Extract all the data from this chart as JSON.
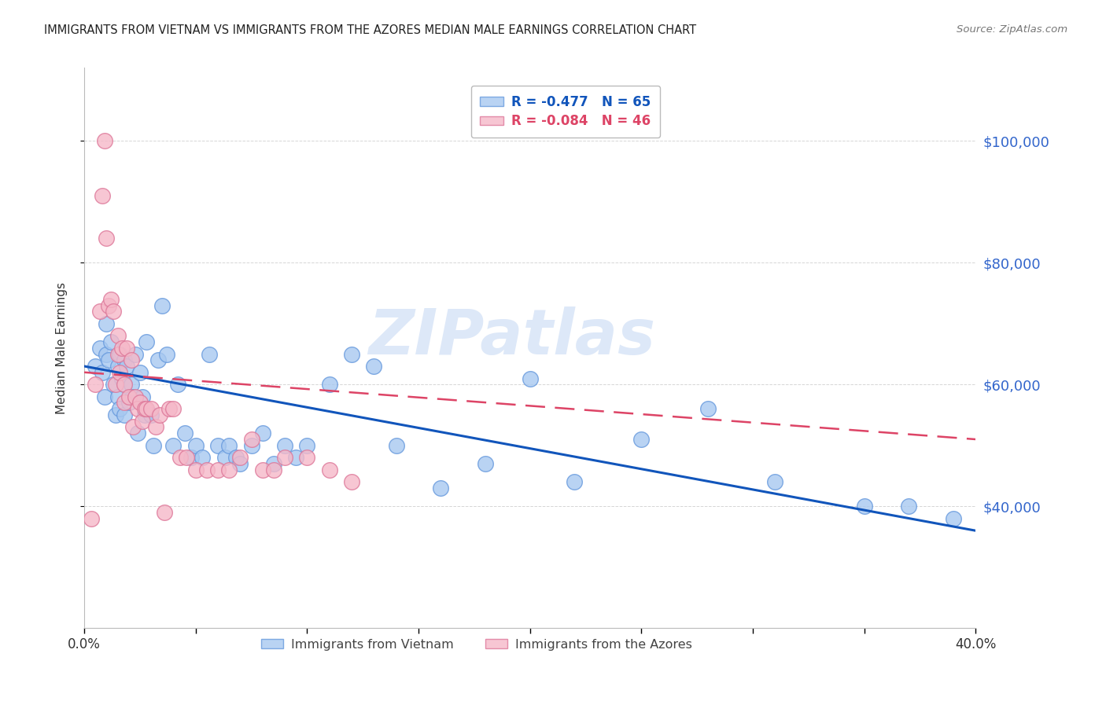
{
  "title": "IMMIGRANTS FROM VIETNAM VS IMMIGRANTS FROM THE AZORES MEDIAN MALE EARNINGS CORRELATION CHART",
  "source": "Source: ZipAtlas.com",
  "ylabel": "Median Male Earnings",
  "ylim": [
    20000,
    112000
  ],
  "xlim": [
    0.0,
    0.4
  ],
  "yticks": [
    40000,
    60000,
    80000,
    100000
  ],
  "ytick_labels": [
    "$40,000",
    "$60,000",
    "$80,000",
    "$100,000"
  ],
  "background_color": "#ffffff",
  "grid_color": "#cccccc",
  "vietnam_color": "#a8c8f0",
  "azores_color": "#f5b8c8",
  "vietnam_edge": "#6699dd",
  "azores_edge": "#dd7799",
  "trendline_vietnam_color": "#1155bb",
  "trendline_azores_color": "#dd4466",
  "title_color": "#222222",
  "right_label_color": "#3366cc",
  "watermark_color": "#dde8f8",
  "vietnam_x": [
    0.005,
    0.007,
    0.008,
    0.009,
    0.01,
    0.01,
    0.011,
    0.012,
    0.013,
    0.014,
    0.015,
    0.015,
    0.016,
    0.016,
    0.017,
    0.018,
    0.018,
    0.018,
    0.019,
    0.02,
    0.021,
    0.022,
    0.023,
    0.024,
    0.025,
    0.026,
    0.027,
    0.028,
    0.03,
    0.031,
    0.033,
    0.035,
    0.037,
    0.04,
    0.042,
    0.045,
    0.048,
    0.05,
    0.053,
    0.056,
    0.06,
    0.063,
    0.065,
    0.068,
    0.07,
    0.075,
    0.08,
    0.085,
    0.09,
    0.095,
    0.1,
    0.11,
    0.12,
    0.13,
    0.14,
    0.16,
    0.18,
    0.2,
    0.22,
    0.25,
    0.28,
    0.31,
    0.35,
    0.37,
    0.39
  ],
  "vietnam_y": [
    63000,
    66000,
    62000,
    58000,
    65000,
    70000,
    64000,
    67000,
    60000,
    55000,
    63000,
    58000,
    65000,
    56000,
    61000,
    64000,
    60000,
    55000,
    63000,
    57000,
    60000,
    58000,
    65000,
    52000,
    62000,
    58000,
    55000,
    67000,
    55000,
    50000,
    64000,
    73000,
    65000,
    50000,
    60000,
    52000,
    48000,
    50000,
    48000,
    65000,
    50000,
    48000,
    50000,
    48000,
    47000,
    50000,
    52000,
    47000,
    50000,
    48000,
    50000,
    60000,
    65000,
    63000,
    50000,
    43000,
    47000,
    61000,
    44000,
    51000,
    56000,
    44000,
    40000,
    40000,
    38000
  ],
  "azores_x": [
    0.003,
    0.005,
    0.007,
    0.008,
    0.009,
    0.01,
    0.011,
    0.012,
    0.013,
    0.014,
    0.015,
    0.015,
    0.016,
    0.017,
    0.018,
    0.018,
    0.019,
    0.02,
    0.021,
    0.022,
    0.023,
    0.024,
    0.025,
    0.026,
    0.027,
    0.028,
    0.03,
    0.032,
    0.034,
    0.036,
    0.038,
    0.04,
    0.043,
    0.046,
    0.05,
    0.055,
    0.06,
    0.065,
    0.07,
    0.075,
    0.08,
    0.085,
    0.09,
    0.1,
    0.11,
    0.12
  ],
  "azores_y": [
    38000,
    60000,
    72000,
    91000,
    100000,
    84000,
    73000,
    74000,
    72000,
    60000,
    68000,
    65000,
    62000,
    66000,
    60000,
    57000,
    66000,
    58000,
    64000,
    53000,
    58000,
    56000,
    57000,
    54000,
    56000,
    56000,
    56000,
    53000,
    55000,
    39000,
    56000,
    56000,
    48000,
    48000,
    46000,
    46000,
    46000,
    46000,
    48000,
    51000,
    46000,
    46000,
    48000,
    48000,
    46000,
    44000
  ],
  "vietnam_trend_x": [
    0.0,
    0.4
  ],
  "vietnam_trend_y": [
    63000,
    36000
  ],
  "azores_trend_x": [
    0.0,
    0.4
  ],
  "azores_trend_y": [
    62000,
    51000
  ]
}
